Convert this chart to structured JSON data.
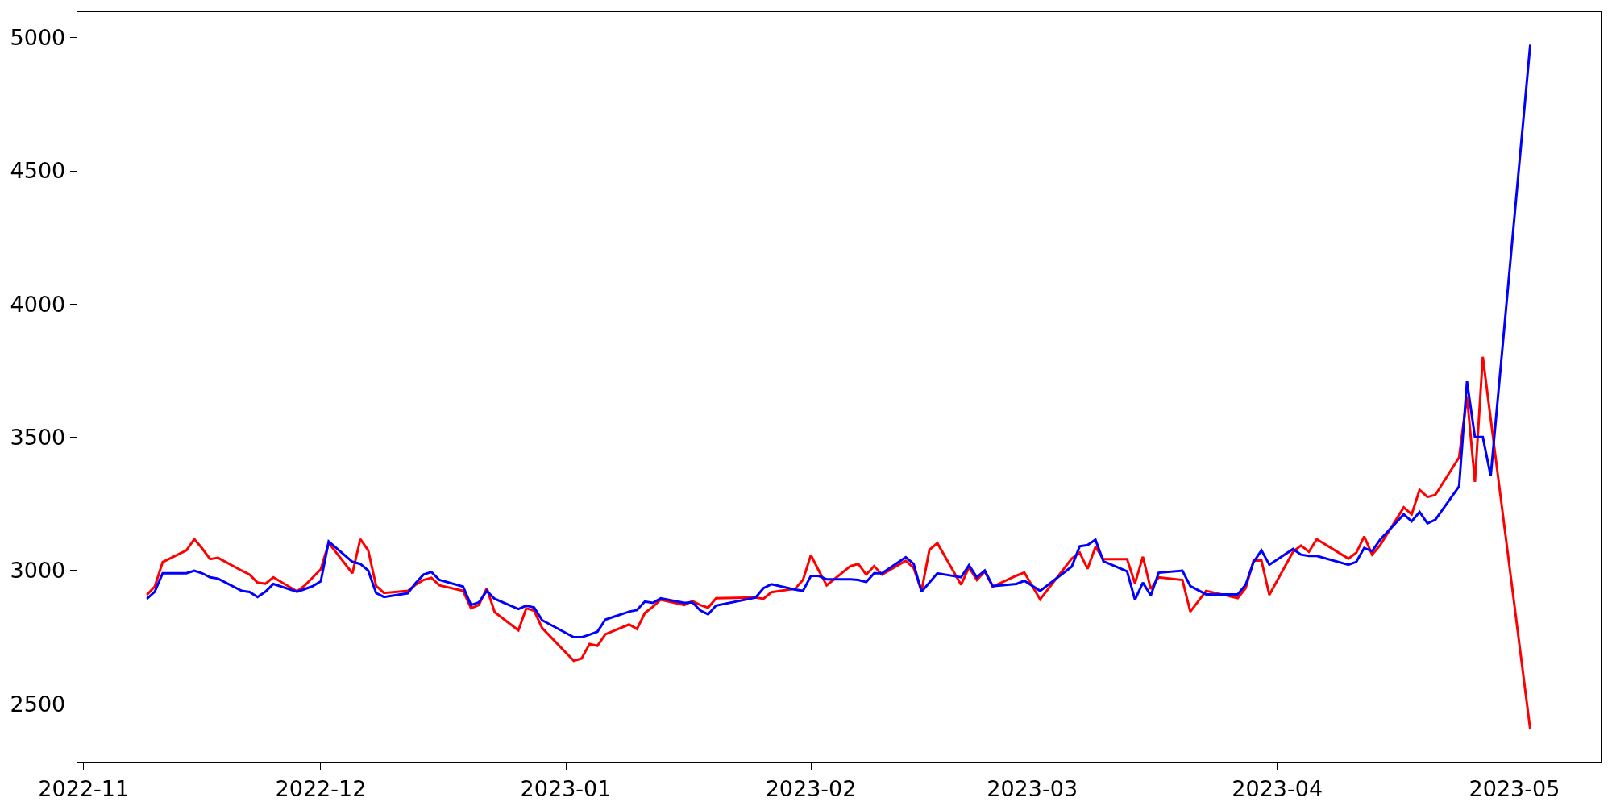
{
  "chart_data": {
    "type": "line",
    "x": [
      "2022-11-09",
      "2022-11-10",
      "2022-11-11",
      "2022-11-14",
      "2022-11-15",
      "2022-11-16",
      "2022-11-17",
      "2022-11-18",
      "2022-11-21",
      "2022-11-22",
      "2022-11-23",
      "2022-11-24",
      "2022-11-25",
      "2022-11-28",
      "2022-11-29",
      "2022-11-30",
      "2022-12-01",
      "2022-12-02",
      "2022-12-05",
      "2022-12-06",
      "2022-12-07",
      "2022-12-08",
      "2022-12-09",
      "2022-12-12",
      "2022-12-13",
      "2022-12-14",
      "2022-12-15",
      "2022-12-16",
      "2022-12-19",
      "2022-12-20",
      "2022-12-21",
      "2022-12-22",
      "2022-12-23",
      "2022-12-26",
      "2022-12-27",
      "2022-12-28",
      "2022-12-29",
      "2023-01-02",
      "2023-01-03",
      "2023-01-04",
      "2023-01-05",
      "2023-01-06",
      "2023-01-09",
      "2023-01-10",
      "2023-01-11",
      "2023-01-12",
      "2023-01-13",
      "2023-01-16",
      "2023-01-17",
      "2023-01-18",
      "2023-01-19",
      "2023-01-20",
      "2023-01-25",
      "2023-01-26",
      "2023-01-27",
      "2023-01-30",
      "2023-01-31",
      "2023-02-01",
      "2023-02-02",
      "2023-02-03",
      "2023-02-06",
      "2023-02-07",
      "2023-02-08",
      "2023-02-09",
      "2023-02-10",
      "2023-02-13",
      "2023-02-14",
      "2023-02-15",
      "2023-02-16",
      "2023-02-17",
      "2023-02-20",
      "2023-02-21",
      "2023-02-22",
      "2023-02-23",
      "2023-02-24",
      "2023-02-27",
      "2023-02-28",
      "2023-03-02",
      "2023-03-06",
      "2023-03-07",
      "2023-03-08",
      "2023-03-09",
      "2023-03-10",
      "2023-03-13",
      "2023-03-14",
      "2023-03-15",
      "2023-03-16",
      "2023-03-17",
      "2023-03-20",
      "2023-03-21",
      "2023-03-23",
      "2023-03-27",
      "2023-03-28",
      "2023-03-29",
      "2023-03-30",
      "2023-03-31",
      "2023-04-03",
      "2023-04-04",
      "2023-04-05",
      "2023-04-06",
      "2023-04-10",
      "2023-04-11",
      "2023-04-12",
      "2023-04-13",
      "2023-04-14",
      "2023-04-17",
      "2023-04-18",
      "2023-04-19",
      "2023-04-20",
      "2023-04-21",
      "2023-04-24",
      "2023-04-25",
      "2023-04-26",
      "2023-04-27",
      "2023-04-28",
      "2023-05-03"
    ],
    "series": [
      {
        "color": "#ff0000",
        "values": [
          2909,
          2940,
          3032,
          3076,
          3118,
          3083,
          3043,
          3048,
          3000,
          2985,
          2955,
          2951,
          2975,
          2922,
          2945,
          2975,
          3005,
          3104,
          2990,
          3118,
          3076,
          2943,
          2916,
          2924,
          2947,
          2965,
          2973,
          2945,
          2924,
          2859,
          2871,
          2934,
          2844,
          2776,
          2859,
          2849,
          2785,
          2662,
          2670,
          2725,
          2718,
          2761,
          2798,
          2781,
          2841,
          2864,
          2891,
          2871,
          2886,
          2871,
          2861,
          2896,
          2899,
          2894,
          2919,
          2932,
          2965,
          3058,
          3000,
          2945,
          3017,
          3025,
          2985,
          3017,
          2985,
          3037,
          3010,
          2924,
          3078,
          3103,
          2947,
          3012,
          2965,
          2997,
          2940,
          2981,
          2993,
          2892,
          3045,
          3068,
          3007,
          3089,
          3043,
          3043,
          2952,
          3052,
          2931,
          2975,
          2965,
          2846,
          2924,
          2897,
          2934,
          3038,
          3038,
          2909,
          3071,
          3094,
          3071,
          3118,
          3045,
          3067,
          3128,
          3060,
          3095,
          3237,
          3211,
          3303,
          3276,
          3284,
          3425,
          3654,
          3333,
          3802,
          3569,
          2404
        ]
      },
      {
        "color": "#0000ff",
        "values": [
          2894,
          2921,
          2990,
          2990,
          3000,
          2990,
          2975,
          2970,
          2924,
          2920,
          2901,
          2921,
          2950,
          2921,
          2931,
          2942,
          2960,
          3109,
          3033,
          3025,
          3000,
          2916,
          2901,
          2915,
          2953,
          2985,
          2995,
          2965,
          2940,
          2871,
          2881,
          2924,
          2894,
          2856,
          2869,
          2861,
          2814,
          2750,
          2750,
          2760,
          2771,
          2816,
          2846,
          2852,
          2884,
          2879,
          2896,
          2879,
          2881,
          2851,
          2836,
          2869,
          2899,
          2934,
          2949,
          2929,
          2924,
          2980,
          2980,
          2967,
          2967,
          2965,
          2957,
          2990,
          2990,
          3050,
          3025,
          2921,
          2955,
          2990,
          2975,
          3020,
          2975,
          3000,
          2942,
          2950,
          2962,
          2924,
          3015,
          3091,
          3096,
          3116,
          3035,
          2997,
          2891,
          2955,
          2907,
          2992,
          3000,
          2942,
          2911,
          2911,
          2947,
          3032,
          3076,
          3022,
          3081,
          3060,
          3055,
          3055,
          3022,
          3033,
          3085,
          3073,
          3116,
          3211,
          3185,
          3220,
          3177,
          3191,
          3316,
          3710,
          3501,
          3501,
          3355,
          4974
        ]
      }
    ],
    "xlim": [
      "2022-10-31T05:00",
      "2023-05-11T22:00"
    ],
    "xticks": [
      "2022-11",
      "2022-12",
      "2023-01",
      "2023-02",
      "2023-03",
      "2023-04",
      "2023-05"
    ],
    "ylim": [
      2280,
      5096
    ],
    "yticks": [
      2500,
      3000,
      3500,
      4000,
      4500,
      5000
    ],
    "marker": "none",
    "line_style": "solid"
  }
}
